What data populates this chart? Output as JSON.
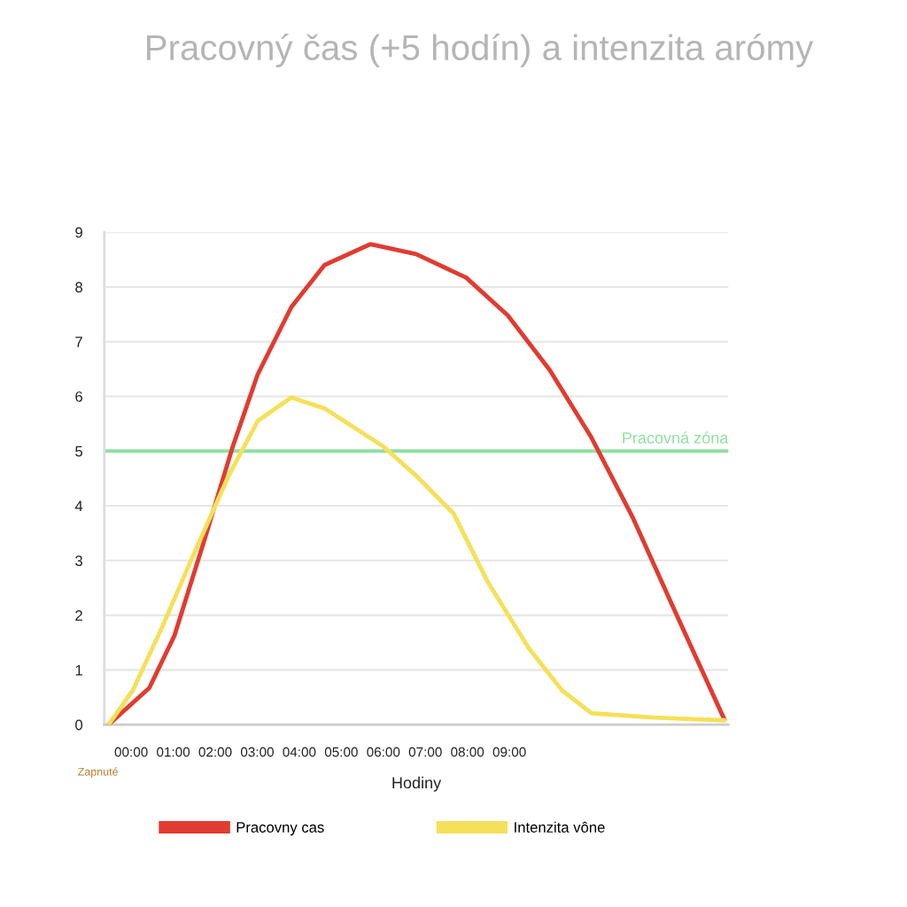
{
  "chart_data": {
    "type": "line",
    "title": "Pracovný čas (+5 hodín) a intenzita arómy",
    "xlabel": "Hodiny",
    "xlim": [
      -0.64,
      14.21
    ],
    "xticks": [
      {
        "value": 0,
        "label": "00:00"
      },
      {
        "value": 1,
        "label": "01:00"
      },
      {
        "value": 2,
        "label": "02:00"
      },
      {
        "value": 3,
        "label": "03:00"
      },
      {
        "value": 4,
        "label": "04:00"
      },
      {
        "value": 5,
        "label": "05:00"
      },
      {
        "value": 6,
        "label": "06:00"
      },
      {
        "value": 7,
        "label": "07:00"
      },
      {
        "value": 8,
        "label": "08:00"
      },
      {
        "value": 9,
        "label": "09:00"
      }
    ],
    "ylim": [
      0,
      9
    ],
    "yticks": [
      0,
      1,
      2,
      3,
      4,
      5,
      6,
      7,
      8,
      9
    ],
    "grid": "y",
    "legend": "bottom",
    "marker": "none",
    "line_style": "solid",
    "series": [
      {
        "name": "Pracovny cas",
        "color": "#e03c31",
        "x": [
          -0.54,
          0.43,
          1.03,
          1.72,
          2.42,
          3.01,
          3.81,
          4.6,
          5.69,
          6.78,
          7.97,
          8.96,
          9.96,
          10.95,
          11.94,
          12.93,
          14.12
        ],
        "values": [
          0,
          0.67,
          1.63,
          3.32,
          5.09,
          6.4,
          7.63,
          8.4,
          8.78,
          8.6,
          8.17,
          7.48,
          6.48,
          5.25,
          3.78,
          2.09,
          0.09
        ]
      },
      {
        "name": "Intenzita vône",
        "color": "#f5e05a",
        "x": [
          -0.54,
          0.04,
          0.73,
          1.52,
          2.32,
          3.01,
          3.81,
          4.6,
          5.99,
          6.78,
          7.67,
          8.47,
          9.46,
          10.25,
          10.95,
          12.44,
          14.12
        ],
        "values": [
          0,
          0.63,
          1.77,
          3.17,
          4.55,
          5.55,
          5.98,
          5.78,
          5.09,
          4.55,
          3.86,
          2.63,
          1.4,
          0.63,
          0.21,
          0.13,
          0.08
        ]
      }
    ],
    "ref_lines": [
      {
        "axis": "y",
        "value": 5,
        "label": "Pracovná zóna",
        "color": "#90e0a0",
        "line_style": "solid"
      }
    ],
    "annotations": [
      "Zapnuté"
    ]
  }
}
